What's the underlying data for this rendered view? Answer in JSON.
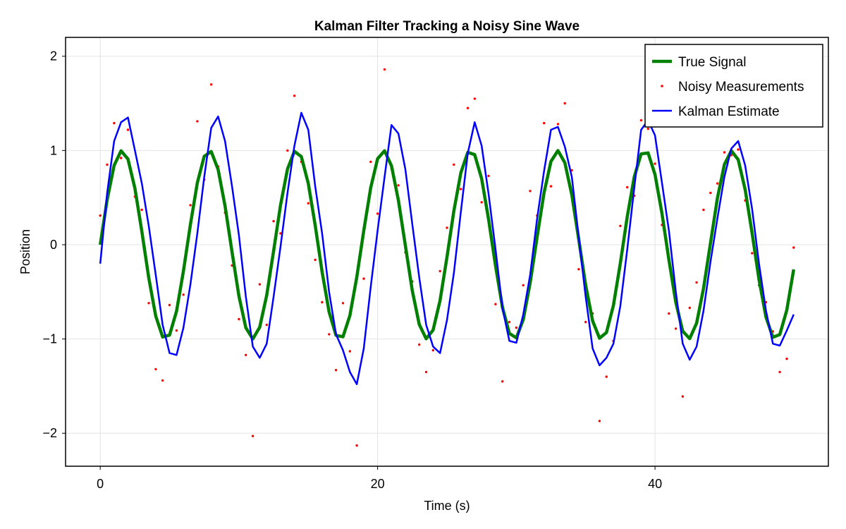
{
  "chart_data": {
    "type": "line",
    "title": "Kalman Filter Tracking a Noisy Sine Wave",
    "xlabel": "Time (s)",
    "ylabel": "Position",
    "xlim": [
      -2.5,
      52.5
    ],
    "ylim": [
      -2.35,
      2.2
    ],
    "x_ticks": [
      0,
      20,
      40
    ],
    "y_ticks": [
      -2,
      -1,
      0,
      1,
      2
    ],
    "x_tick_labels": [
      "0",
      "20",
      "40"
    ],
    "y_tick_labels": [
      "−2",
      "−1",
      "0",
      "1",
      "2"
    ],
    "grid": true,
    "legend_position": "top-right",
    "series": [
      {
        "name": "True Signal",
        "kind": "line",
        "color": "#008000",
        "x": [
          0,
          0.5,
          1,
          1.5,
          2,
          2.5,
          3,
          3.5,
          4,
          4.5,
          5,
          5.5,
          6,
          6.5,
          7,
          7.5,
          8,
          8.5,
          9,
          9.5,
          10,
          10.5,
          11,
          11.5,
          12,
          12.5,
          13,
          13.5,
          14,
          14.5,
          15,
          15.5,
          16,
          16.5,
          17,
          17.5,
          18,
          18.5,
          19,
          19.5,
          20,
          20.5,
          21,
          21.5,
          22,
          22.5,
          23,
          23.5,
          24,
          24.5,
          25,
          25.5,
          26,
          26.5,
          27,
          27.5,
          28,
          28.5,
          29,
          29.5,
          30,
          30.5,
          31,
          31.5,
          32,
          32.5,
          33,
          33.5,
          34,
          34.5,
          35,
          35.5,
          36,
          36.5,
          37,
          37.5,
          38,
          38.5,
          39,
          39.5,
          40,
          40.5,
          41,
          41.5,
          42,
          42.5,
          43,
          43.5,
          44,
          44.5,
          45,
          45.5,
          46,
          46.5,
          47,
          47.5,
          48,
          48.5,
          49,
          49.5,
          50
        ],
        "y": [
          0,
          0.479,
          0.841,
          0.997,
          0.909,
          0.598,
          0.141,
          -0.351,
          -0.757,
          -0.978,
          -0.959,
          -0.706,
          -0.279,
          0.215,
          0.657,
          0.938,
          0.989,
          0.798,
          0.412,
          -0.075,
          -0.544,
          -0.88,
          -1,
          -0.875,
          -0.537,
          -0.066,
          0.42,
          0.803,
          0.991,
          0.935,
          0.65,
          0.206,
          -0.288,
          -0.712,
          -0.961,
          -0.976,
          -0.751,
          -0.343,
          0.15,
          0.604,
          0.913,
          0.997,
          0.837,
          0.472,
          -0.009,
          -0.487,
          -0.846,
          -0.998,
          -0.906,
          -0.591,
          -0.132,
          0.359,
          0.763,
          0.98,
          0.956,
          0.7,
          0.271,
          -0.224,
          -0.663,
          -0.941,
          -0.988,
          -0.794,
          -0.404,
          0.084,
          0.551,
          0.884,
          0.999,
          0.871,
          0.529,
          0.057,
          -0.428,
          -0.808,
          -0.992,
          -0.932,
          -0.644,
          -0.197,
          0.296,
          0.718,
          0.964,
          0.974,
          0.745,
          0.335,
          -0.159,
          -0.611,
          -0.917,
          -0.996,
          -0.832,
          -0.464,
          0.018,
          0.494,
          0.851,
          0.998,
          0.902,
          0.584,
          0.124,
          -0.368,
          -0.769,
          -0.982,
          -0.953,
          -0.694,
          -0.262
        ]
      },
      {
        "name": "Noisy Measurements",
        "kind": "scatter",
        "color": "#ff0000",
        "x": [
          0,
          0.5,
          1,
          1.5,
          2,
          2.5,
          3,
          3.5,
          4,
          4.5,
          5,
          5.5,
          6,
          6.5,
          7,
          7.5,
          8,
          8.5,
          9,
          9.5,
          10,
          10.5,
          11,
          11.5,
          12,
          12.5,
          13,
          13.5,
          14,
          14.5,
          15,
          15.5,
          16,
          16.5,
          17,
          17.5,
          18,
          18.5,
          19,
          19.5,
          20,
          20.5,
          21,
          21.5,
          22,
          22.5,
          23,
          23.5,
          24,
          24.5,
          25,
          25.5,
          26,
          26.5,
          27,
          27.5,
          28,
          28.5,
          29,
          29.5,
          30,
          30.5,
          31,
          31.5,
          32,
          32.5,
          33,
          33.5,
          34,
          34.5,
          35,
          35.5,
          36,
          36.5,
          37,
          37.5,
          38,
          38.5,
          39,
          39.5,
          40,
          40.5,
          41,
          41.5,
          42,
          42.5,
          43,
          43.5,
          44,
          44.5,
          45,
          45.5,
          46,
          46.5,
          47,
          47.5,
          48,
          48.5,
          49,
          49.5,
          50
        ],
        "y": [
          0.31,
          0.85,
          1.29,
          0.92,
          1.22,
          0.51,
          0.37,
          -0.62,
          -1.32,
          -1.44,
          -0.64,
          -0.91,
          -0.53,
          0.42,
          1.31,
          0.69,
          1.7,
          0.83,
          0.34,
          -0.22,
          -0.79,
          -1.17,
          -2.03,
          -0.42,
          -0.85,
          0.25,
          0.12,
          1.0,
          1.58,
          0.88,
          0.44,
          -0.16,
          -0.61,
          -0.95,
          -1.33,
          -0.62,
          -1.13,
          -2.13,
          -0.36,
          0.88,
          0.33,
          1.86,
          0.81,
          0.63,
          -0.08,
          -0.39,
          -1.06,
          -1.35,
          -1.12,
          -0.28,
          0.18,
          0.85,
          0.59,
          1.45,
          1.55,
          0.45,
          0.73,
          -0.63,
          -1.45,
          -0.82,
          -0.88,
          -0.43,
          0.57,
          0.31,
          1.29,
          0.62,
          1.28,
          1.5,
          0.79,
          -0.26,
          -0.82,
          -0.73,
          -1.87,
          -1.4,
          -1.02,
          0.2,
          0.61,
          0.52,
          1.32,
          1.23,
          0.86,
          0.21,
          -0.73,
          -0.89,
          -1.61,
          -0.67,
          -0.4,
          0.37,
          0.55,
          0.65,
          0.98,
          0.95,
          1.01,
          0.47,
          -0.09,
          -0.43,
          -0.61,
          -0.92,
          -1.35,
          -1.21,
          -0.03
        ]
      },
      {
        "name": "Kalman Estimate",
        "kind": "line",
        "color": "#0000ff",
        "x": [
          0,
          0.5,
          1,
          1.5,
          2,
          2.5,
          3,
          3.5,
          4,
          4.5,
          5,
          5.5,
          6,
          6.5,
          7,
          7.5,
          8,
          8.5,
          9,
          9.5,
          10,
          10.5,
          11,
          11.5,
          12,
          12.5,
          13,
          13.5,
          14,
          14.5,
          15,
          15.5,
          16,
          16.5,
          17,
          17.5,
          18,
          18.5,
          19,
          19.5,
          20,
          20.5,
          21,
          21.5,
          22,
          22.5,
          23,
          23.5,
          24,
          24.5,
          25,
          25.5,
          26,
          26.5,
          27,
          27.5,
          28,
          28.5,
          29,
          29.5,
          30,
          30.5,
          31,
          31.5,
          32,
          32.5,
          33,
          33.5,
          34,
          34.5,
          35,
          35.5,
          36,
          36.5,
          37,
          37.5,
          38,
          38.5,
          39,
          39.5,
          40,
          40.5,
          41,
          41.5,
          42,
          42.5,
          43,
          43.5,
          44,
          44.5,
          45,
          45.5,
          46,
          46.5,
          47,
          47.5,
          48,
          48.5,
          49,
          49.5,
          50
        ],
        "y": [
          -0.2,
          0.55,
          1.1,
          1.3,
          1.35,
          1.0,
          0.65,
          0.2,
          -0.32,
          -0.85,
          -1.15,
          -1.17,
          -0.88,
          -0.42,
          0.12,
          0.72,
          1.24,
          1.36,
          1.1,
          0.62,
          0.1,
          -0.55,
          -1.08,
          -1.2,
          -1.05,
          -0.55,
          -0.02,
          0.55,
          1.05,
          1.4,
          1.22,
          0.62,
          0.12,
          -0.5,
          -0.95,
          -1.12,
          -1.35,
          -1.48,
          -1.1,
          -0.45,
          0.15,
          0.72,
          1.27,
          1.18,
          0.8,
          0.22,
          -0.35,
          -0.85,
          -1.08,
          -1.15,
          -0.8,
          -0.3,
          0.35,
          0.97,
          1.3,
          1.05,
          0.54,
          -0.05,
          -0.67,
          -1.02,
          -1.04,
          -0.74,
          -0.32,
          0.28,
          0.78,
          1.22,
          1.25,
          1.04,
          0.72,
          0.08,
          -0.55,
          -1.1,
          -1.28,
          -1.2,
          -1.05,
          -0.65,
          -0.05,
          0.6,
          1.22,
          1.32,
          1.16,
          0.66,
          0.15,
          -0.5,
          -1.05,
          -1.22,
          -1.08,
          -0.7,
          -0.18,
          0.28,
          0.72,
          1.02,
          1.1,
          0.84,
          0.38,
          -0.2,
          -0.7,
          -1.05,
          -1.07,
          -0.91,
          -0.74
        ]
      }
    ]
  }
}
